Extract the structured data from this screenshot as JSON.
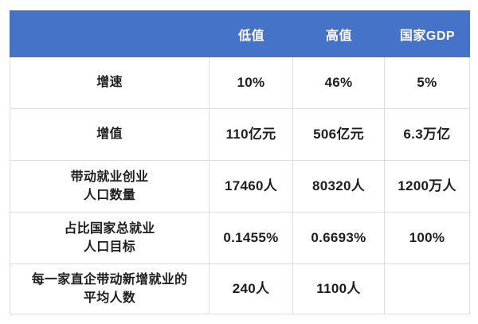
{
  "chart_data": {
    "type": "table",
    "title": "",
    "columns": [
      "",
      "低值",
      "高值",
      "国家GDP"
    ],
    "rows": [
      [
        "增速",
        "10%",
        "46%",
        "5%"
      ],
      [
        "增值",
        "110亿元",
        "506亿元",
        "6.3万亿"
      ],
      [
        "带动就业创业\n人口数量",
        "17460人",
        "80320人",
        "1200万人"
      ],
      [
        "占比国家总就业\n人口目标",
        "0.1455%",
        "0.6693%",
        "100%"
      ],
      [
        "每一家直企带动新增就业的\n平均人数",
        "240人",
        "1100人",
        ""
      ]
    ]
  },
  "colors": {
    "header_bg": "#4573C8",
    "header_text": "#FFFFFF",
    "body_text": "#1E1E1E",
    "border": "#DEDEDE",
    "background": "#FFFFFF"
  }
}
